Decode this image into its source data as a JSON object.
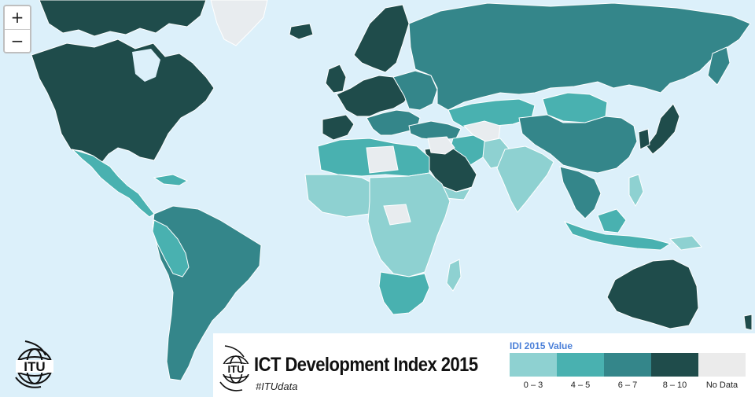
{
  "map": {
    "colors": {
      "ocean": "#dcf0fa",
      "c0_3": "#8ed1d1",
      "c4_5": "#49b1b0",
      "c6_7": "#34868a",
      "c8_10": "#1f4c4b",
      "no_data": "#e8ecef"
    }
  },
  "zoom": {
    "in_label": "+",
    "out_label": "−"
  },
  "branding": {
    "logo_text": "ITU",
    "title": "ICT Development Index 2015",
    "hashtag": "#ITUdata"
  },
  "legend": {
    "title": "IDI 2015 Value",
    "items": [
      {
        "label": "0 – 3",
        "color": "#8ed1d1"
      },
      {
        "label": "4 – 5",
        "color": "#49b1b0"
      },
      {
        "label": "6 – 7",
        "color": "#34868a"
      },
      {
        "label": "8 – 10",
        "color": "#1f4c4b"
      },
      {
        "label": "No Data",
        "color": "#ebebeb"
      }
    ]
  }
}
